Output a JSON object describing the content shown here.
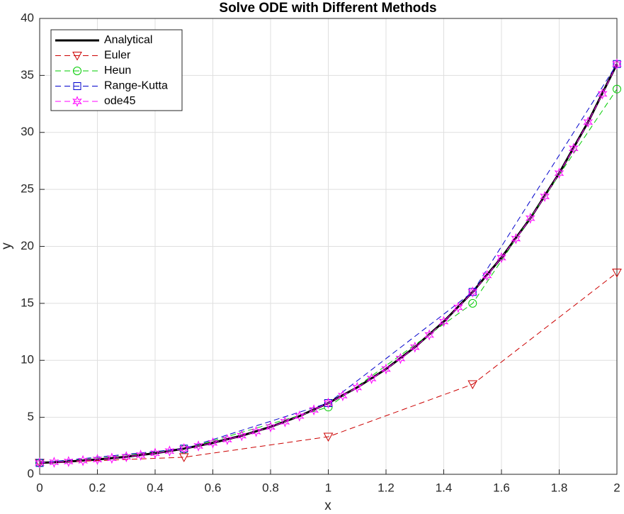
{
  "chart_data": {
    "type": "line",
    "title": "Solve ODE with Different Methods",
    "xlabel": "x",
    "ylabel": "y",
    "xlim": [
      0,
      2
    ],
    "xticks": [
      0,
      0.2,
      0.4,
      0.6,
      0.8,
      1,
      1.2,
      1.4,
      1.6,
      1.8,
      2
    ],
    "ylim": [
      0,
      40
    ],
    "yticks": [
      0,
      5,
      10,
      15,
      20,
      25,
      30,
      35,
      40
    ],
    "grid": true,
    "legend": "upper-left",
    "series": [
      {
        "name": "Analytical",
        "color": "#000000",
        "dash": "solid",
        "marker": "none",
        "x": [
          0,
          0.1,
          0.2,
          0.3,
          0.4,
          0.5,
          0.6,
          0.7,
          0.8,
          0.9,
          1,
          1.1,
          1.2,
          1.3,
          1.4,
          1.5,
          1.6,
          1.7,
          1.8,
          1.9,
          2
        ],
        "values": [
          1,
          1.12,
          1.3,
          1.54,
          1.85,
          2.25,
          2.76,
          3.39,
          4.16,
          5.11,
          6.25,
          7.62,
          9.24,
          11.16,
          13.4,
          16,
          19.01,
          22.47,
          26.42,
          30.91,
          36
        ]
      },
      {
        "name": "Euler",
        "color": "#cc0000",
        "dash": "dashed",
        "marker": "triangle-down",
        "x": [
          0,
          0.5,
          1,
          1.5,
          2
        ],
        "values": [
          1,
          1.5,
          3.3,
          7.9,
          17.7
        ]
      },
      {
        "name": "Heun",
        "color": "#00cc00",
        "dash": "dashed",
        "marker": "circle",
        "x": [
          0,
          0.5,
          1,
          1.5,
          2
        ],
        "values": [
          1,
          2.2,
          5.9,
          15,
          33.8
        ]
      },
      {
        "name": "Range-Kutta",
        "color": "#0000cc",
        "dash": "dashed",
        "marker": "square",
        "x": [
          0,
          0.5,
          1,
          1.5,
          2
        ],
        "values": [
          1,
          2.25,
          6.25,
          16,
          36
        ]
      },
      {
        "name": "ode45",
        "color": "#ff00ff",
        "dash": "dashed",
        "marker": "star",
        "x": [
          0,
          0.05,
          0.1,
          0.15,
          0.2,
          0.25,
          0.3,
          0.35,
          0.4,
          0.45,
          0.5,
          0.55,
          0.6,
          0.65,
          0.7,
          0.75,
          0.8,
          0.85,
          0.9,
          0.95,
          1,
          1.05,
          1.1,
          1.15,
          1.2,
          1.25,
          1.3,
          1.35,
          1.4,
          1.45,
          1.5,
          1.55,
          1.6,
          1.65,
          1.7,
          1.75,
          1.8,
          1.85,
          1.9,
          1.95,
          2
        ],
        "values": [
          1,
          1.06,
          1.12,
          1.2,
          1.3,
          1.41,
          1.54,
          1.68,
          1.85,
          2.04,
          2.25,
          2.49,
          2.76,
          3.05,
          3.39,
          3.75,
          4.16,
          4.61,
          5.11,
          5.65,
          6.25,
          6.9,
          7.62,
          8.4,
          9.24,
          10.16,
          11.16,
          12.23,
          13.4,
          14.65,
          16,
          17.45,
          19.01,
          20.68,
          22.47,
          24.38,
          26.42,
          28.6,
          30.91,
          33.38,
          36
        ]
      }
    ]
  }
}
